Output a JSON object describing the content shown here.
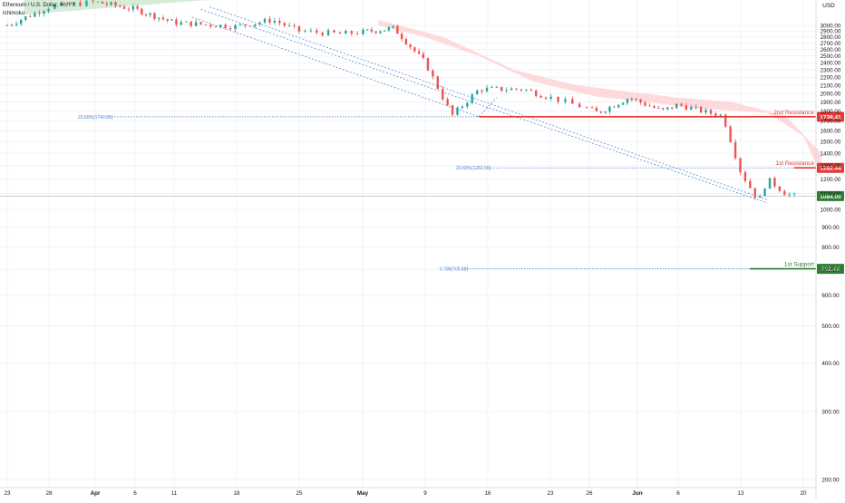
{
  "legend": {
    "symbol_line": "Ethereum / U.S. Dollar, 4h, FX",
    "indicator": "Ichimoku"
  },
  "chart_data": {
    "type": "candlestick",
    "title": "Ethereum / U.S. Dollar, 4h, FX",
    "indicator": "Ichimoku",
    "currency": "USD",
    "y_scale": "log",
    "y_ticks": [
      200,
      300,
      400,
      500,
      600,
      700,
      800,
      900,
      1000,
      1100,
      1200,
      1300,
      1400,
      1500,
      1600,
      1700,
      1800,
      1900,
      2000,
      2100,
      2200,
      2300,
      2400,
      2500,
      2600,
      2700,
      2800,
      2900,
      3000
    ],
    "x_ticks": [
      "23",
      "28",
      "Apr",
      "6",
      "11",
      "18",
      "25",
      "May",
      "9",
      "16",
      "23",
      "26",
      "Jun",
      "6",
      "13",
      "20"
    ],
    "last_price": 1084.0,
    "price_path": [
      [
        "Mar 23",
        3000
      ],
      [
        "Mar 28",
        3350
      ],
      [
        "Apr 1",
        3450
      ],
      [
        "Apr 6",
        3300
      ],
      [
        "Apr 11",
        3050
      ],
      [
        "Apr 18",
        2980
      ],
      [
        "Apr 22",
        3100
      ],
      [
        "Apr 25",
        2900
      ],
      [
        "Apr 29",
        2850
      ],
      [
        "May 5",
        2950
      ],
      [
        "May 9",
        2400
      ],
      [
        "May 12",
        1750
      ],
      [
        "May 15",
        2050
      ],
      [
        "May 20",
        2050
      ],
      [
        "May 23",
        1950
      ],
      [
        "May 27",
        1780
      ],
      [
        "May 31",
        1950
      ],
      [
        "Jun 4",
        1800
      ],
      [
        "Jun 6",
        1870
      ],
      [
        "Jun 9",
        1790
      ],
      [
        "Jun 11",
        1750
      ],
      [
        "Jun 13",
        1250
      ],
      [
        "Jun 15",
        1050
      ],
      [
        "Jun 16",
        1200
      ],
      [
        "Jun 18",
        1100
      ],
      [
        "Jun 19",
        1084
      ]
    ],
    "levels": [
      {
        "label": "2nd Resistance",
        "value": 1739.41,
        "value_text": "1739.41",
        "fib": "23.60%(1740.81)",
        "color": "#e53935"
      },
      {
        "label": "1st Resistance",
        "value": 1282.44,
        "value_text": "1282.44",
        "fib": "23.60%(1282.68)",
        "color": "#e53935"
      },
      {
        "label": "1st Support",
        "value": 702.4,
        "value_text": "702.40",
        "fib": "0.786(705.88)",
        "color": "#2e7d32"
      }
    ],
    "last_price_label": "1084.00",
    "last_price_color": "#2e7d32",
    "up_color": "#26a69a",
    "down_color": "#ef5350",
    "green_cloud_color": "#c8e6c9",
    "red_cloud_color": "#ffcdd2",
    "trendline_color": "#5b8dc9"
  }
}
